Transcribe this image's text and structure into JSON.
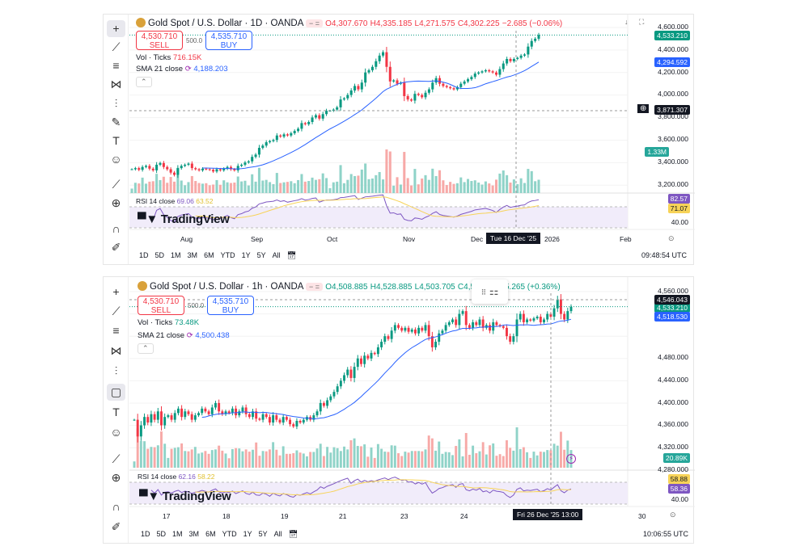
{
  "top": {
    "symbol": "Gold Spot / U.S. Dollar · 1D · OANDA",
    "open": "O4,307.670",
    "high": "H4,335.185",
    "low": "L4,271.575",
    "close": "C4,302.225",
    "change": "−2.685 (−0.06%)",
    "sell_price": "4,530.710",
    "sell_label": "SELL",
    "spread": "500.0",
    "buy_price": "4,535.710",
    "buy_label": "BUY",
    "vol_label": "Vol · Ticks",
    "vol_value": "716.15K",
    "sma_label": "SMA 21 close",
    "sma_value": "4,188.203",
    "rsi_label": "RSI 14 close",
    "rsi_value": "69.06",
    "rsi_ma_value": "63.52",
    "price_ticks": [
      "4,600.000",
      "4,400.000",
      "4,200.000",
      "4,000.000",
      "3,800.000",
      "3,600.000",
      "3,400.000",
      "3,200.000"
    ],
    "badge_last": "4,533.210",
    "badge_sma": "4,294.592",
    "badge_cross": "3,871.307",
    "badge_vol": "1.33M",
    "rsi_badge1": "82.57",
    "rsi_badge2": "71.07",
    "rsi_tick": "40.00",
    "time_labels": [
      "Aug",
      "Sep",
      "Oct",
      "Nov",
      "Dec",
      "2026",
      "Feb"
    ],
    "crosshair_time": "Tue 16 Dec '25",
    "ranges": [
      "1D",
      "5D",
      "1M",
      "3M",
      "6M",
      "YTD",
      "1Y",
      "5Y",
      "All"
    ],
    "clock": "09:48:54 UTC",
    "watermark": "TradingView"
  },
  "bottom": {
    "symbol": "Gold Spot / U.S. Dollar · 1h · OANDA",
    "open": "O4,508.885",
    "high": "H4,528.885",
    "low": "L4,503.705",
    "close": "C4,5",
    "change": "5.265 (+0.36%)",
    "sell_price": "4,530.710",
    "sell_label": "SELL",
    "spread": "500.0",
    "buy_price": "4,535.710",
    "buy_label": "BUY",
    "vol_label": "Vol · Ticks",
    "vol_value": "73.48K",
    "sma_label": "SMA 21 close",
    "sma_value": "4,500.438",
    "rsi_label": "RSI 14 close",
    "rsi_value": "62.16",
    "rsi_ma_value": "58.22",
    "price_ticks": [
      "4,560.000",
      "4,480.000",
      "4,440.000",
      "4,400.000",
      "4,360.000",
      "4,320.000",
      "4,280.000"
    ],
    "badge_cross": "4,546.043",
    "badge_last": "4,533.210",
    "badge_sma": "4,518.530",
    "badge_vol": "20.89K",
    "rsi_badge1": "58.88",
    "rsi_badge2": "58.36",
    "rsi_tick": "40.00",
    "time_labels": [
      "17",
      "18",
      "19",
      "21",
      "23",
      "24",
      "30"
    ],
    "crosshair_time": "Fri 26 Dec '25   13:00",
    "ranges": [
      "1D",
      "5D",
      "1M",
      "3M",
      "6M",
      "YTD",
      "1Y",
      "5Y",
      "All"
    ],
    "clock": "10:06:55 UTC",
    "watermark": "TradingView"
  },
  "colors": {
    "up": "#089981",
    "down": "#f23645",
    "sma": "#2962ff",
    "rsi": "#7e57c2",
    "rsi_ma": "#f7d358"
  },
  "chart_data": [
    {
      "type": "candlestick",
      "title": "Gold Spot / U.S. Dollar · 1D · OANDA",
      "ylim": [
        3200,
        4600
      ],
      "closes": [
        3340,
        3350,
        3335,
        3360,
        3370,
        3345,
        3330,
        3380,
        3395,
        3360,
        3340,
        3310,
        3290,
        3350,
        3370,
        3380,
        3390,
        3350,
        3340,
        3330,
        3345,
        3340,
        3335,
        3320,
        3340,
        3330,
        3345,
        3360,
        3340,
        3330,
        3370,
        3380,
        3400,
        3410,
        3450,
        3470,
        3530,
        3550,
        3580,
        3590,
        3600,
        3640,
        3630,
        3650,
        3640,
        3660,
        3680,
        3700,
        3750,
        3740,
        3760,
        3800,
        3820,
        3790,
        3830,
        3860,
        3860,
        3870,
        3890,
        3960,
        3970,
        4000,
        4040,
        4080,
        4050,
        4110,
        4200,
        4220,
        4250,
        4300,
        4350,
        4380,
        4250,
        4120,
        4130,
        4100,
        4110,
        3990,
        3960,
        3950,
        4010,
        4000,
        3980,
        4020,
        4050,
        4110,
        4150,
        4100,
        4080,
        4070,
        4060,
        4050,
        4070,
        4100,
        4120,
        4140,
        4160,
        4190,
        4200,
        4210,
        4220,
        4210,
        4200,
        4180,
        4230,
        4280,
        4320,
        4300,
        4320,
        4330,
        4350,
        4360,
        4430,
        4480,
        4500,
        4533
      ]
    },
    {
      "type": "candlestick",
      "title": "Gold Spot / U.S. Dollar · 1h · OANDA",
      "ylim": [
        4270,
        4560
      ],
      "closes": [
        4330,
        4300,
        4320,
        4335,
        4325,
        4340,
        4330,
        4345,
        4320,
        4335,
        4338,
        4330,
        4342,
        4350,
        4335,
        4345,
        4340,
        4330,
        4338,
        4342,
        4350,
        4345,
        4340,
        4352,
        4360,
        4345,
        4340,
        4345,
        4342,
        4350,
        4338,
        4345,
        4352,
        4340,
        4335,
        4345,
        4332,
        4330,
        4340,
        4335,
        4325,
        4338,
        4330,
        4325,
        4335,
        4330,
        4322,
        4318,
        4328,
        4325,
        4330,
        4335,
        4330,
        4338,
        4345,
        4360,
        4355,
        4365,
        4372,
        4380,
        4390,
        4400,
        4410,
        4420,
        4405,
        4425,
        4440,
        4430,
        4445,
        4440,
        4450,
        4448,
        4460,
        4470,
        4480,
        4475,
        4490,
        4500,
        4495,
        4490,
        4495,
        4488,
        4492,
        4485,
        4495,
        4490,
        4500,
        4480,
        4460,
        4470,
        4485,
        4490,
        4500,
        4505,
        4510,
        4500,
        4520,
        4525,
        4500,
        4495,
        4505,
        4500,
        4510,
        4495,
        4500,
        4490,
        4505,
        4500,
        4498,
        4495,
        4480,
        4470,
        4480,
        4510,
        4520,
        4505,
        4510,
        4508,
        4512,
        4515,
        4505,
        4510,
        4520,
        4515,
        4530,
        4546,
        4520,
        4510,
        4525,
        4533
      ]
    }
  ]
}
